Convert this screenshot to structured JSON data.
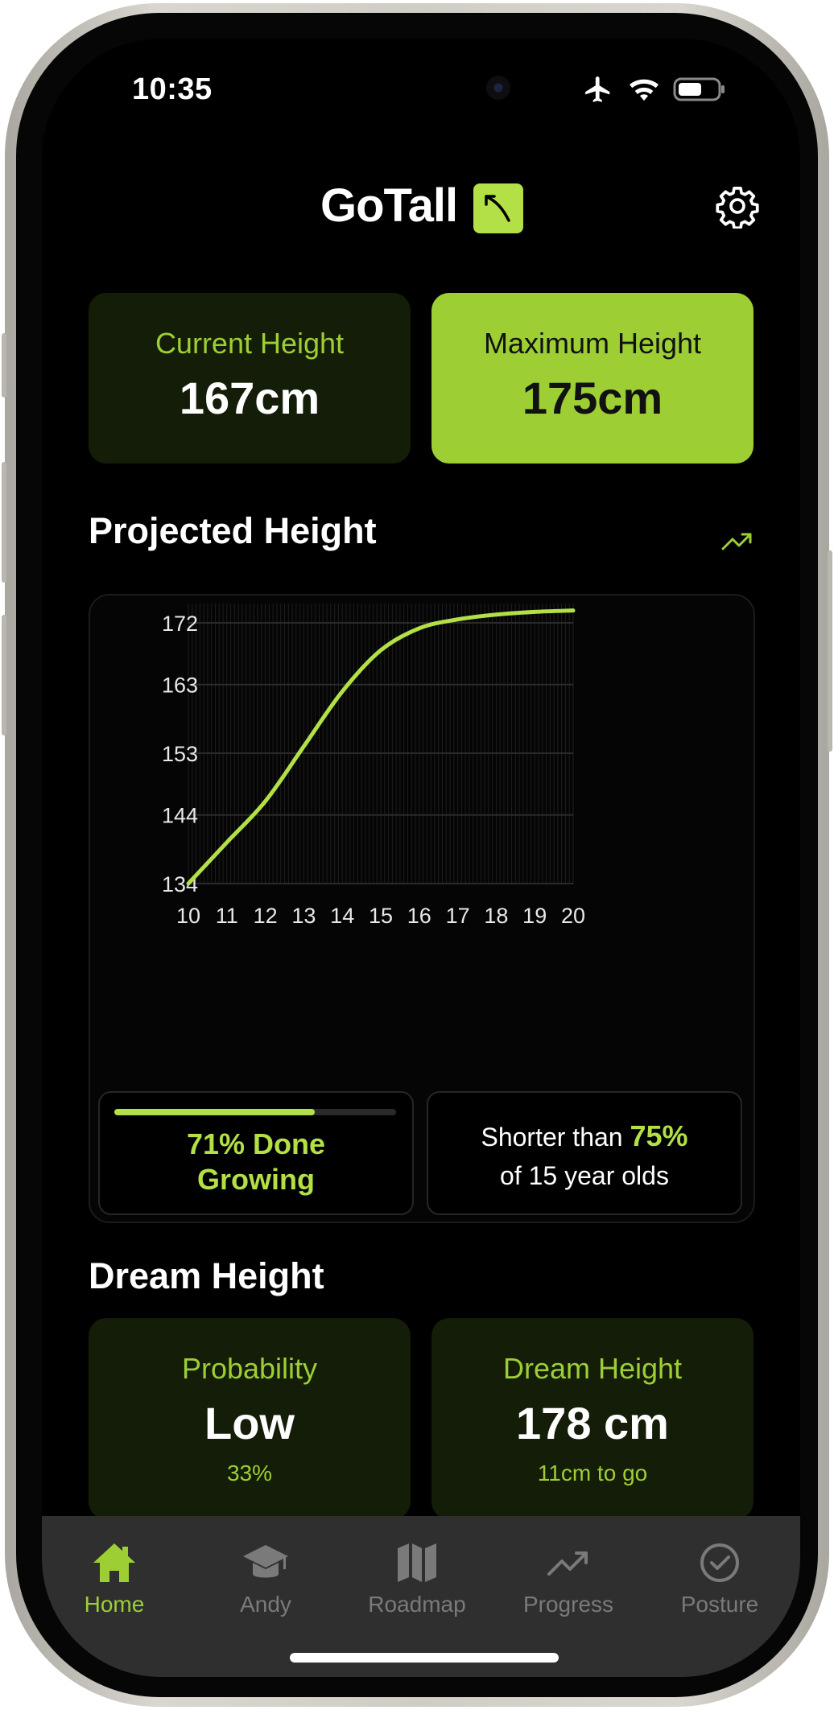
{
  "status_bar": {
    "time": "10:35"
  },
  "header": {
    "app_name": "GoTall"
  },
  "height_cards": {
    "current": {
      "label": "Current Height",
      "value": "167cm"
    },
    "maximum": {
      "label": "Maximum Height",
      "value": "175cm"
    }
  },
  "projected": {
    "title": "Projected Height"
  },
  "chart_data": {
    "type": "line",
    "title": "",
    "xlabel": "",
    "ylabel": "",
    "x": [
      10,
      11,
      12,
      13,
      14,
      15,
      16,
      17,
      18,
      19,
      20
    ],
    "series": [
      {
        "values": [
          134,
          140,
          146,
          154,
          162,
          168,
          171.2,
          172.5,
          173.2,
          173.6,
          173.8
        ]
      }
    ],
    "x_ticks": [
      "10",
      "11",
      "12",
      "13",
      "14",
      "15",
      "16",
      "17",
      "18",
      "19",
      "20"
    ],
    "y_ticks": [
      "172",
      "163",
      "153",
      "144",
      "134"
    ],
    "xlim": [
      10,
      20
    ],
    "ylim": [
      134,
      172
    ],
    "grid": true,
    "color": "#b2e046"
  },
  "growth": {
    "done_line1": "71% Done",
    "done_line2": "Growing",
    "done_fraction": 0.71
  },
  "percentile": {
    "pre": "Shorter than",
    "value": "75%",
    "post": "of 15 year olds"
  },
  "dream": {
    "title": "Dream Height",
    "probability": {
      "label": "Probability",
      "value": "Low",
      "sub": "33%"
    },
    "target": {
      "label": "Dream Height",
      "value": "178 cm",
      "sub": "11cm to go"
    }
  },
  "tabs": [
    {
      "label": "Home",
      "icon": "home-icon",
      "active": true
    },
    {
      "label": "Andy",
      "icon": "graduation-cap-icon",
      "active": false
    },
    {
      "label": "Roadmap",
      "icon": "map-icon",
      "active": false
    },
    {
      "label": "Progress",
      "icon": "trend-up-icon",
      "active": false
    },
    {
      "label": "Posture",
      "icon": "checkmark-circle-icon",
      "active": false
    }
  ],
  "colors": {
    "accent": "#9dcf35",
    "accent_light": "#b2e046",
    "card_dark": "#141d08",
    "tabbar": "#2f2f2f"
  }
}
